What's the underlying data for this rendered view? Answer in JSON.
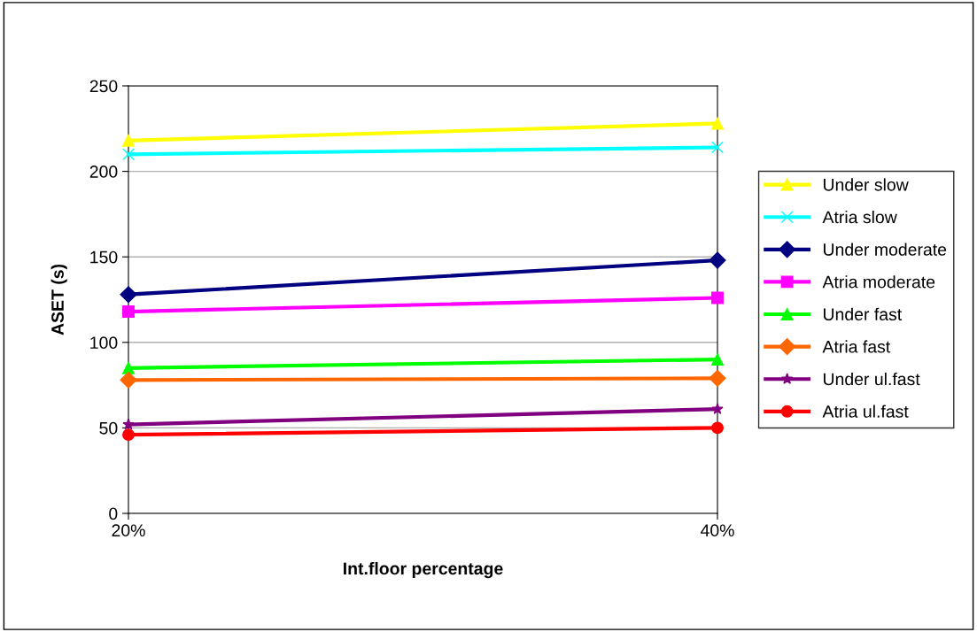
{
  "chart_data": {
    "type": "line",
    "xlabel": "Int.floor percentage",
    "ylabel": "ASET (s)",
    "x": [
      20,
      40
    ],
    "xlim": [
      20,
      40
    ],
    "xticks": [
      {
        "value": 20,
        "label": "20%"
      },
      {
        "value": 40,
        "label": "40%"
      }
    ],
    "series": [
      {
        "name": "Under slow",
        "color": "#ffff00",
        "marker": "triangle",
        "values": [
          218,
          228
        ]
      },
      {
        "name": "Atria slow",
        "color": "#00ffff",
        "marker": "cross",
        "values": [
          210,
          214
        ]
      },
      {
        "name": "Under moderate",
        "color": "#000080",
        "marker": "diamond",
        "values": [
          128,
          148
        ]
      },
      {
        "name": "Atria moderate",
        "color": "#ff00ff",
        "marker": "square",
        "values": [
          118,
          126
        ]
      },
      {
        "name": "Under fast",
        "color": "#00ff00",
        "marker": "triangle",
        "values": [
          85,
          90
        ]
      },
      {
        "name": "Atria fast",
        "color": "#ff6600",
        "marker": "diamond",
        "values": [
          78,
          79
        ]
      },
      {
        "name": "Under ul.fast",
        "color": "#800080",
        "marker": "star",
        "values": [
          52,
          61
        ]
      },
      {
        "name": "Atria ul.fast",
        "color": "#ff0000",
        "marker": "circle",
        "values": [
          46,
          50
        ]
      }
    ],
    "ylim": [
      0,
      250
    ],
    "yticks": [
      0,
      50,
      100,
      150,
      200,
      250
    ],
    "grid": "y",
    "legend": "right",
    "line_style": "solid"
  }
}
